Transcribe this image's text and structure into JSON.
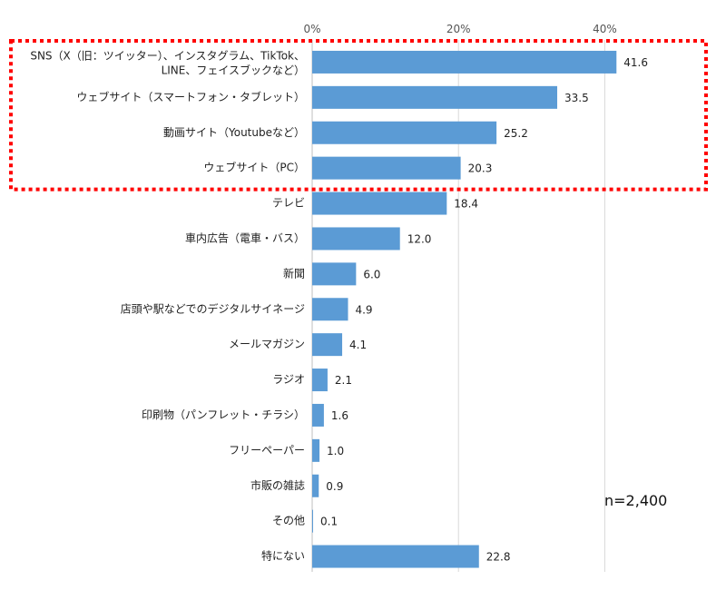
{
  "chart_data": {
    "type": "bar",
    "orientation": "horizontal",
    "xlim": [
      0,
      50
    ],
    "xticks": [
      "0%",
      "20%",
      "40%"
    ],
    "xtick_values": [
      0,
      20,
      40
    ],
    "grid": true,
    "bar_color": "#5b9bd5",
    "highlight_color": "#ff0000",
    "categories": [
      "SNS（X（旧：ツイッター）、インスタグラム、TikTok、LINE、フェイスブックなど）",
      "ウェブサイト（スマートフォン・タブレット）",
      "動画サイト（Youtubeなど）",
      "ウェブサイト（PC）",
      "テレビ",
      "車内広告（電車・バス）",
      "新聞",
      "店頭や駅などでのデジタルサイネージ",
      "メールマガジン",
      "ラジオ",
      "印刷物（パンフレット・チラシ）",
      "フリーペーパー",
      "市販の雑誌",
      "その他",
      "特にない"
    ],
    "category_lines": [
      [
        "SNS（X（旧：ツイッター）、インスタグラム、TikTok、",
        "LINE、フェイスブックなど）"
      ]
    ],
    "values": [
      41.6,
      33.5,
      25.2,
      20.3,
      18.4,
      12.0,
      6.0,
      4.9,
      4.1,
      2.1,
      1.6,
      1.0,
      0.9,
      0.1,
      22.8
    ],
    "value_labels": [
      "41.6",
      "33.5",
      "25.2",
      "20.3",
      "18.4",
      "12.0",
      "6.0",
      "4.9",
      "4.1",
      "2.1",
      "1.6",
      "1.0",
      "0.9",
      "0.1",
      "22.8"
    ],
    "highlighted_count": 4,
    "annotation": "n=2,400"
  }
}
